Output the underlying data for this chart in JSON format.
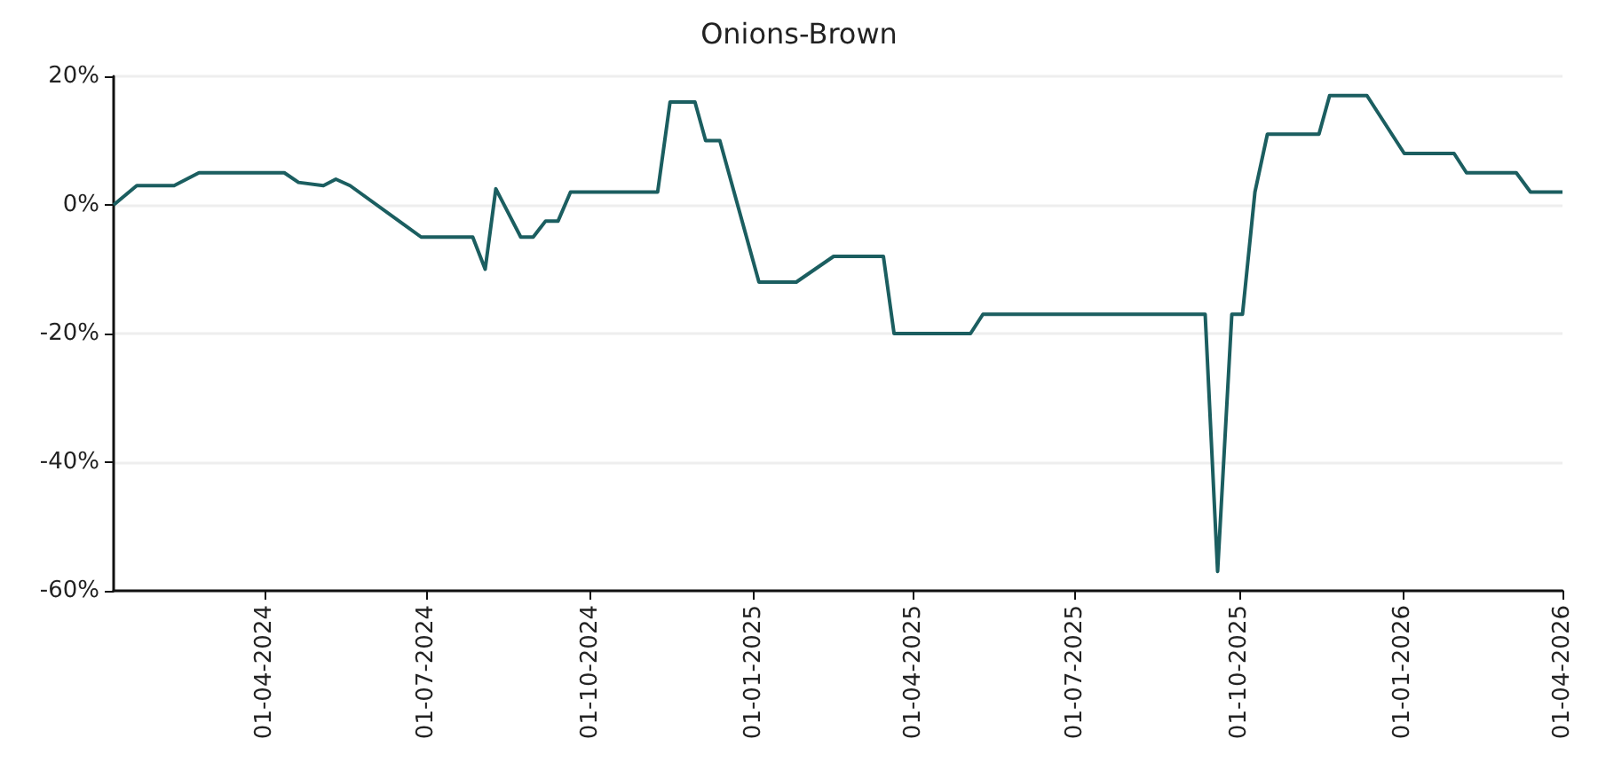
{
  "chart_data": {
    "type": "line",
    "title": "Onions-Brown",
    "grid": "y",
    "marker": "none",
    "line_style": "solid",
    "xlim": [
      "2024-01-07",
      "2026-04-01"
    ],
    "xticks": [
      {
        "value": "2024-04-01",
        "label": "01-04-2024"
      },
      {
        "value": "2024-07-01",
        "label": "01-07-2024"
      },
      {
        "value": "2024-10-01",
        "label": "01-10-2024"
      },
      {
        "value": "2025-01-01",
        "label": "01-01-2025"
      },
      {
        "value": "2025-04-01",
        "label": "01-04-2025"
      },
      {
        "value": "2025-07-01",
        "label": "01-07-2025"
      },
      {
        "value": "2025-10-01",
        "label": "01-10-2025"
      },
      {
        "value": "2026-01-01",
        "label": "01-01-2026"
      },
      {
        "value": "2026-04-01",
        "label": "01-04-2026"
      }
    ],
    "ylim": [
      -60,
      20
    ],
    "yticks": [
      {
        "value": -60,
        "label": "-60%"
      },
      {
        "value": -40,
        "label": "-40%"
      },
      {
        "value": -20,
        "label": "-20%"
      },
      {
        "value": 0,
        "label": "0%"
      },
      {
        "value": 20,
        "label": "20%"
      }
    ],
    "series": [
      {
        "color": "#1b5e60",
        "x": [
          "2024-01-07",
          "2024-01-20",
          "2024-02-10",
          "2024-02-24",
          "2024-04-12",
          "2024-04-20",
          "2024-05-04",
          "2024-05-11",
          "2024-05-19",
          "2024-06-28",
          "2024-07-27",
          "2024-08-03",
          "2024-08-09",
          "2024-08-23",
          "2024-08-30",
          "2024-09-06",
          "2024-09-13",
          "2024-09-20",
          "2024-11-08",
          "2024-11-15",
          "2024-11-29",
          "2024-12-05",
          "2024-12-13",
          "2025-01-04",
          "2025-01-25",
          "2025-02-15",
          "2025-03-15",
          "2025-03-21",
          "2025-05-03",
          "2025-05-10",
          "2025-09-12",
          "2025-09-19",
          "2025-09-27",
          "2025-10-03",
          "2025-10-10",
          "2025-10-17",
          "2025-11-15",
          "2025-11-21",
          "2025-12-12",
          "2026-01-02",
          "2026-01-30",
          "2026-02-06",
          "2026-03-06",
          "2026-03-14",
          "2026-04-01"
        ],
        "values": [
          0,
          3,
          3,
          5,
          5,
          3.5,
          3,
          4,
          3,
          -5,
          -5,
          -10,
          2.5,
          -5,
          -5,
          -2.5,
          -2.5,
          2,
          2,
          16,
          16,
          10,
          10,
          -12,
          -12,
          -8,
          -8,
          -20,
          -20,
          -17,
          -17,
          -57,
          -17,
          -17,
          2,
          11,
          11,
          17,
          17,
          8,
          8,
          5,
          5,
          2,
          2
        ]
      }
    ]
  }
}
